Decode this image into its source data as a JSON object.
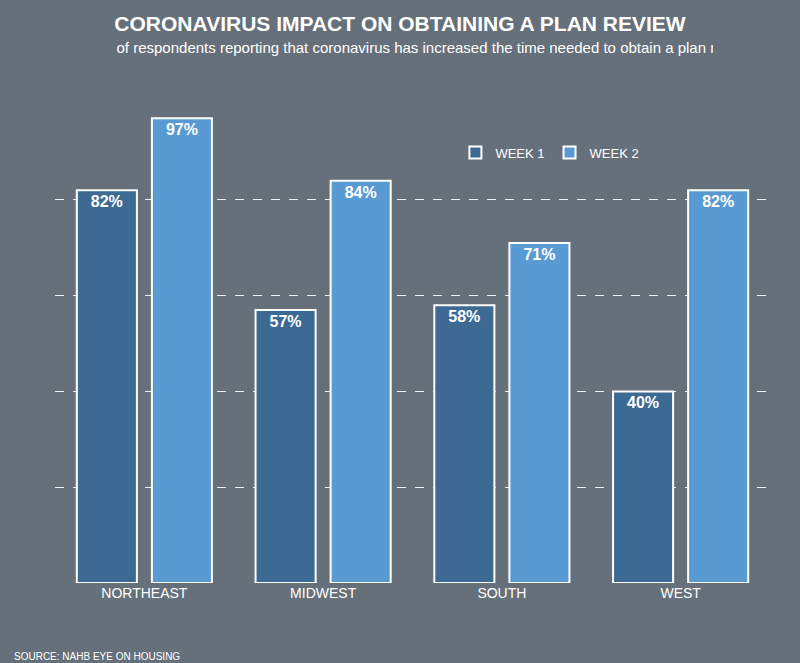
{
  "chart_data": {
    "type": "bar",
    "title": "CORONAVIRUS IMPACT ON OBTAINING A PLAN REVIEW",
    "subtitle": "Share of respondents reporting that coronavirus has increased the time needed to obtain a plan review",
    "source": "SOURCE: NAHB EYE ON HOUSING",
    "categories": [
      "NORTHEAST",
      "MIDWEST",
      "SOUTH",
      "WEST"
    ],
    "series": [
      {
        "name": "WEEK 1",
        "color": "#3d6a93",
        "values": [
          82,
          57,
          58,
          40
        ],
        "value_labels": [
          "82%",
          "57%",
          "58%",
          "40%"
        ]
      },
      {
        "name": "WEEK 2",
        "color": "#5a9ad2",
        "values": [
          97,
          84,
          71,
          82
        ],
        "value_labels": [
          "97%",
          "84%",
          "71%",
          "82%"
        ]
      }
    ],
    "ylim": [
      0,
      100
    ],
    "yticks": [
      0,
      20,
      40,
      60,
      80,
      100
    ],
    "grid": true,
    "legend": "top right",
    "data_labels": true,
    "tick_labels": "x"
  }
}
